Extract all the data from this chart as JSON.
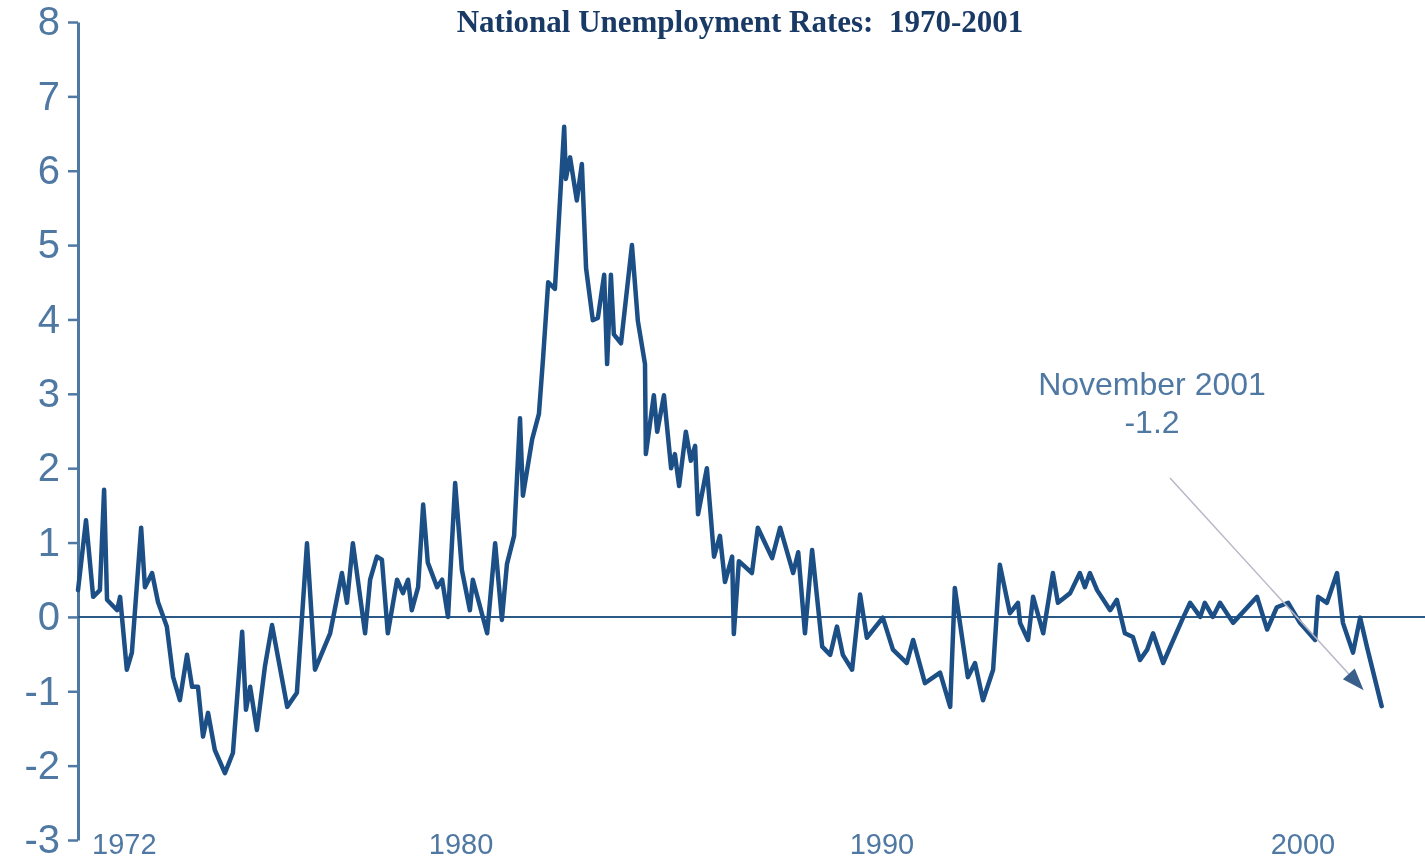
{
  "chart_data": {
    "type": "line",
    "title": "National Unemployment Rates:  1970-2001",
    "xlim": [
      1970.9,
      2002.9
    ],
    "xticks": [
      1972,
      1980,
      1990,
      2000
    ],
    "ylim": [
      -3,
      8
    ],
    "yticks": [
      -3,
      -2,
      -1,
      0,
      1,
      2,
      3,
      4,
      5,
      6,
      7,
      8
    ],
    "grid": false,
    "marker": "none",
    "line_style": "solid",
    "ref_lines": [
      {
        "axis": "y",
        "value": 0,
        "color": "#2a5a85"
      }
    ],
    "annotations": [
      "November 2001\n-1.2"
    ],
    "series": [
      {
        "color": "#1c4f86",
        "x": [
          1970.9,
          1971.09,
          1971.26,
          1971.42,
          1971.52,
          1971.59,
          1971.83,
          1971.9,
          1972.06,
          1972.18,
          1972.4,
          1972.49,
          1972.66,
          1972.8,
          1973.01,
          1973.16,
          1973.32,
          1973.49,
          1973.61,
          1973.75,
          1973.87,
          1973.99,
          1974.15,
          1974.39,
          1974.58,
          1974.8,
          1974.89,
          1974.99,
          1975.15,
          1975.34,
          1975.51,
          1975.87,
          1976.1,
          1976.34,
          1976.53,
          1976.89,
          1977.17,
          1977.29,
          1977.43,
          1977.72,
          1977.84,
          1978.0,
          1978.12,
          1978.26,
          1978.48,
          1978.62,
          1978.74,
          1978.83,
          1978.98,
          1979.1,
          1979.21,
          1979.43,
          1979.55,
          1979.69,
          1979.86,
          1980.02,
          1980.21,
          1980.28,
          1980.62,
          1980.81,
          1980.97,
          1981.09,
          1981.26,
          1981.4,
          1981.47,
          1981.69,
          1981.85,
          1981.95,
          1982.07,
          1982.23,
          1982.45,
          1982.49,
          1982.59,
          1982.75,
          1982.87,
          1982.97,
          1983.13,
          1983.25,
          1983.4,
          1983.47,
          1983.56,
          1983.63,
          1983.8,
          1984.06,
          1984.2,
          1984.37,
          1984.39,
          1984.58,
          1984.66,
          1984.82,
          1984.99,
          1985.08,
          1985.18,
          1985.34,
          1985.46,
          1985.56,
          1985.63,
          1985.77,
          1985.84,
          1986.01,
          1986.15,
          1986.27,
          1986.44,
          1986.48,
          1986.6,
          1986.91,
          1987.05,
          1987.39,
          1987.58,
          1987.89,
          1988.01,
          1988.17,
          1988.34,
          1988.58,
          1988.77,
          1988.93,
          1989.07,
          1989.29,
          1989.48,
          1989.64,
          1990.02,
          1990.26,
          1990.59,
          1990.74,
          1991.02,
          1991.38,
          1991.62,
          1991.73,
          1992.04,
          1992.21,
          1992.4,
          1992.64,
          1992.8,
          1993.04,
          1993.23,
          1993.28,
          1993.47,
          1993.59,
          1993.83,
          1994.06,
          1994.18,
          1994.47,
          1994.7,
          1994.82,
          1994.94,
          1995.11,
          1995.42,
          1995.58,
          1995.77,
          1995.96,
          1996.13,
          1996.3,
          1996.44,
          1996.68,
          1997.13,
          1997.32,
          1997.56,
          1997.67,
          1997.86,
          1998.03,
          1998.34,
          1998.91,
          1999.15,
          1999.38,
          1999.65,
          1999.93,
          2000.29,
          2000.36,
          2000.57,
          2000.81,
          2000.95,
          2001.19,
          2001.36,
          2001.52,
          2001.87
        ],
        "values": [
          0.36,
          1.3,
          0.27,
          0.36,
          1.71,
          0.23,
          0.09,
          0.27,
          -0.71,
          -0.48,
          1.2,
          0.4,
          0.59,
          0.2,
          -0.13,
          -0.81,
          -1.12,
          -0.51,
          -0.94,
          -0.94,
          -1.61,
          -1.29,
          -1.79,
          -2.1,
          -1.83,
          -0.2,
          -1.25,
          -0.94,
          -1.52,
          -0.67,
          -0.11,
          -1.21,
          -1.02,
          0.99,
          -0.71,
          -0.22,
          0.59,
          0.19,
          0.99,
          -0.22,
          0.5,
          0.81,
          0.77,
          -0.22,
          0.5,
          0.32,
          0.5,
          0.09,
          0.4,
          1.51,
          0.73,
          0.4,
          0.5,
          0.0,
          1.8,
          0.63,
          0.09,
          0.5,
          -0.22,
          0.99,
          -0.04,
          0.71,
          1.09,
          2.67,
          1.63,
          2.39,
          2.73,
          3.49,
          4.5,
          4.41,
          6.59,
          5.89,
          6.18,
          5.6,
          6.09,
          4.69,
          3.99,
          4.02,
          4.6,
          3.4,
          4.6,
          3.8,
          3.68,
          5.0,
          3.98,
          3.4,
          2.19,
          2.98,
          2.49,
          2.98,
          2.0,
          2.19,
          1.76,
          2.49,
          2.1,
          2.3,
          1.38,
          1.79,
          2.0,
          0.81,
          1.09,
          0.47,
          0.81,
          -0.23,
          0.75,
          0.59,
          1.2,
          0.79,
          1.2,
          0.59,
          0.87,
          -0.22,
          0.9,
          -0.4,
          -0.51,
          -0.13,
          -0.51,
          -0.71,
          0.3,
          -0.28,
          -0.01,
          -0.44,
          -0.62,
          -0.31,
          -0.89,
          -0.75,
          -1.21,
          0.39,
          -0.81,
          -0.62,
          -1.12,
          -0.71,
          0.7,
          0.05,
          0.19,
          -0.08,
          -0.31,
          0.27,
          -0.22,
          0.59,
          0.19,
          0.32,
          0.59,
          0.4,
          0.59,
          0.36,
          0.09,
          0.23,
          -0.22,
          -0.27,
          -0.58,
          -0.44,
          -0.22,
          -0.62,
          -0.04,
          0.19,
          0.0,
          0.19,
          0.0,
          0.19,
          -0.08,
          0.27,
          -0.17,
          0.13,
          0.19,
          -0.08,
          -0.31,
          0.27,
          0.19,
          0.59,
          -0.08,
          -0.48,
          -0.01,
          -0.4,
          -1.2
        ]
      }
    ]
  }
}
